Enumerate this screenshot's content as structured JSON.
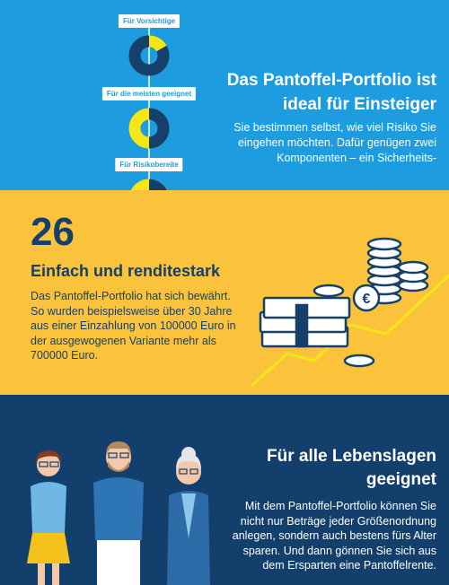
{
  "section1": {
    "labels": [
      "Für Vorsichtige",
      "Für die meisten geeignet",
      "Für Risikobereite"
    ],
    "title_line1": "Das Pantoffel-Portfolio ist",
    "title_line2": "ideal für Einsteiger",
    "body": "Sie bestimmen selbst, wie viel Risiko Sie eingehen möchten. Dafür genügen zwei Komponenten – ein Sicherheits-",
    "colors": {
      "background": "#1d9de0",
      "navy": "#163f69",
      "yellow": "#f5e617"
    }
  },
  "section2": {
    "number": "26",
    "title": "Einfach und renditestark",
    "body": "Das Pantoffel-Portfolio hat sich bewährt. So wurden beispielsweise über 30 Jahre aus einer Einzahlung von 100000 Euro in der ausgewogenen Variante mehr als 700000 Euro.",
    "coin_symbol": "€",
    "colors": {
      "background": "#fbc33c",
      "navy": "#163f69"
    }
  },
  "section3": {
    "title_line1": "Für alle Lebenslagen",
    "title_line2": "geeignet",
    "body": "Mit dem Pantoffel-Portfolio können Sie nicht nur Beträge jeder Größenordnung anlegen, sondern auch bestens fürs Alter sparen. Und dann gönnen Sie sich aus dem Ersparten eine Pantoffelrente.",
    "colors": {
      "background": "#123f6b"
    }
  }
}
